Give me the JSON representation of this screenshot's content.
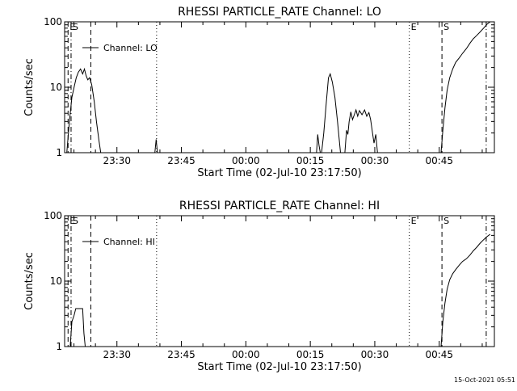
{
  "timestamp": "15-Oct-2021 05:51",
  "chart_data": [
    {
      "type": "line",
      "title": "RHESSI PARTICLE_RATE Channel: LO",
      "xlabel": "Start Time (02-Jul-10 23:17:50)",
      "ylabel": "Counts/sec",
      "yscale": "log",
      "ylim": [
        1,
        100
      ],
      "xlim_minutes": [
        0,
        100
      ],
      "x_ticks": [
        {
          "t": 12.17,
          "label": "23:30"
        },
        {
          "t": 27.17,
          "label": "23:45"
        },
        {
          "t": 42.17,
          "label": "00:00"
        },
        {
          "t": 57.17,
          "label": "00:15"
        },
        {
          "t": 72.17,
          "label": "00:30"
        },
        {
          "t": 87.17,
          "label": "00:45"
        }
      ],
      "y_ticks": [
        {
          "v": 1,
          "label": "1"
        },
        {
          "v": 10,
          "label": "10"
        },
        {
          "v": 100,
          "label": "100"
        }
      ],
      "legend": "Channel: LO",
      "legend_position": "top-left",
      "markers": [
        {
          "t": 0.8,
          "style": "dashed",
          "label": "E"
        },
        {
          "t": 1.5,
          "style": "dashdot",
          "label": "S"
        },
        {
          "t": 6.1,
          "style": "dashed",
          "label": ""
        },
        {
          "t": 21.4,
          "style": "dotted",
          "label": ""
        },
        {
          "t": 80.2,
          "style": "dotted",
          "label": "E"
        },
        {
          "t": 87.8,
          "style": "dashed",
          "label": "S"
        },
        {
          "t": 98.1,
          "style": "dashdot",
          "label": ""
        }
      ],
      "segments": [
        [
          [
            0.5,
            1
          ],
          [
            1.1,
            3
          ],
          [
            1.7,
            7
          ],
          [
            2.2,
            10
          ],
          [
            2.7,
            14
          ],
          [
            3.2,
            17
          ],
          [
            3.7,
            19
          ],
          [
            4.2,
            16
          ],
          [
            4.6,
            19
          ],
          [
            5.0,
            15
          ],
          [
            5.4,
            13
          ],
          [
            5.8,
            14
          ],
          [
            6.3,
            11
          ],
          [
            6.9,
            6
          ],
          [
            7.4,
            3
          ],
          [
            8.0,
            1.5
          ],
          [
            8.4,
            1
          ]
        ],
        [
          [
            21.0,
            1
          ],
          [
            21.3,
            1.6
          ],
          [
            21.6,
            1
          ]
        ],
        [
          [
            59.8,
            1
          ],
          [
            60.3,
            2
          ],
          [
            60.9,
            6
          ],
          [
            61.4,
            14
          ],
          [
            61.8,
            16
          ],
          [
            62.3,
            12
          ],
          [
            62.9,
            7
          ],
          [
            63.5,
            3
          ],
          [
            64.2,
            1
          ]
        ],
        [
          [
            58.6,
            1
          ],
          [
            58.9,
            1.9
          ],
          [
            59.2,
            1.3
          ],
          [
            59.5,
            1
          ]
        ],
        [
          [
            65.2,
            1
          ],
          [
            65.6,
            2.2
          ],
          [
            65.9,
            1.9
          ],
          [
            66.2,
            3
          ],
          [
            66.6,
            4.2
          ],
          [
            67.0,
            3.2
          ],
          [
            67.4,
            3.8
          ],
          [
            67.8,
            4.5
          ],
          [
            68.2,
            3.6
          ],
          [
            68.6,
            4.4
          ],
          [
            69.2,
            3.8
          ],
          [
            69.8,
            4.5
          ],
          [
            70.3,
            3.6
          ],
          [
            70.8,
            4.1
          ],
          [
            71.2,
            3.2
          ],
          [
            71.6,
            2.1
          ],
          [
            72.0,
            1.4
          ],
          [
            72.4,
            1.9
          ],
          [
            72.8,
            1
          ]
        ],
        [
          [
            87.6,
            1
          ],
          [
            88.0,
            2.2
          ],
          [
            88.5,
            4.8
          ],
          [
            89.0,
            9
          ],
          [
            89.6,
            14
          ],
          [
            90.3,
            19
          ],
          [
            91.0,
            24
          ],
          [
            91.8,
            28
          ],
          [
            92.6,
            33
          ],
          [
            93.5,
            39
          ],
          [
            94.3,
            47
          ],
          [
            95.1,
            55
          ],
          [
            95.9,
            62
          ],
          [
            96.7,
            70
          ],
          [
            97.5,
            80
          ],
          [
            98.3,
            92
          ],
          [
            99.0,
            100
          ]
        ]
      ]
    },
    {
      "type": "line",
      "title": "RHESSI PARTICLE_RATE Channel: HI",
      "xlabel": "Start Time (02-Jul-10 23:17:50)",
      "ylabel": "Counts/sec",
      "yscale": "log",
      "ylim": [
        1,
        100
      ],
      "xlim_minutes": [
        0,
        100
      ],
      "x_ticks": [
        {
          "t": 12.17,
          "label": "23:30"
        },
        {
          "t": 27.17,
          "label": "23:45"
        },
        {
          "t": 42.17,
          "label": "00:00"
        },
        {
          "t": 57.17,
          "label": "00:15"
        },
        {
          "t": 72.17,
          "label": "00:30"
        },
        {
          "t": 87.17,
          "label": "00:45"
        }
      ],
      "y_ticks": [
        {
          "v": 1,
          "label": "1"
        },
        {
          "v": 10,
          "label": "10"
        },
        {
          "v": 100,
          "label": "100"
        }
      ],
      "legend": "Channel: HI",
      "legend_position": "top-left",
      "markers": [
        {
          "t": 0.8,
          "style": "dashed",
          "label": "E"
        },
        {
          "t": 1.5,
          "style": "dashdot",
          "label": "S"
        },
        {
          "t": 6.1,
          "style": "dashed",
          "label": ""
        },
        {
          "t": 21.4,
          "style": "dotted",
          "label": ""
        },
        {
          "t": 80.2,
          "style": "dotted",
          "label": "E"
        },
        {
          "t": 87.8,
          "style": "dashed",
          "label": "S"
        },
        {
          "t": 98.1,
          "style": "dashdot",
          "label": ""
        }
      ],
      "segments": [
        [
          [
            1.3,
            1
          ],
          [
            1.7,
            2.4
          ],
          [
            2.2,
            3
          ],
          [
            2.6,
            3.8
          ],
          [
            3.0,
            3.8
          ],
          [
            3.4,
            3.8
          ],
          [
            3.8,
            3.8
          ],
          [
            4.2,
            3.8
          ],
          [
            4.5,
            1.6
          ],
          [
            4.8,
            1
          ]
        ],
        [
          [
            87.6,
            1
          ],
          [
            88.0,
            2.4
          ],
          [
            88.5,
            4.6
          ],
          [
            89.0,
            7.5
          ],
          [
            89.6,
            10.5
          ],
          [
            90.3,
            13
          ],
          [
            91.0,
            15
          ],
          [
            91.8,
            17.5
          ],
          [
            92.6,
            20
          ],
          [
            93.5,
            22
          ],
          [
            94.3,
            25
          ],
          [
            95.1,
            29
          ],
          [
            95.9,
            33
          ],
          [
            96.7,
            38
          ],
          [
            97.5,
            43
          ],
          [
            98.3,
            48
          ],
          [
            99.0,
            52
          ]
        ]
      ]
    }
  ]
}
